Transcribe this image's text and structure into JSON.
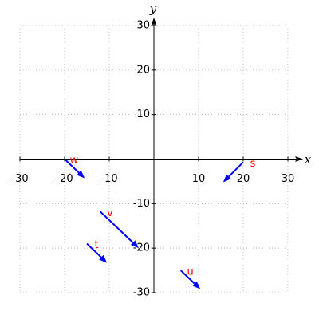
{
  "chart_data": {
    "type": "vector",
    "xlabel": "x",
    "ylabel": "y",
    "xlim": [
      -30,
      30
    ],
    "ylim": [
      -30,
      30
    ],
    "xticks": [
      -30,
      -20,
      -10,
      10,
      20,
      30
    ],
    "yticks": [
      -30,
      -20,
      -10,
      10,
      20,
      30
    ],
    "grid": true,
    "color": "#0000ff",
    "label_color": "#ff0000",
    "vectors": [
      {
        "name": "w",
        "x0": -20,
        "y0": 0,
        "x1": -15.5,
        "y1": -4.3
      },
      {
        "name": "s",
        "x0": 20,
        "y0": -0.7,
        "x1": 15.5,
        "y1": -5.2
      },
      {
        "name": "v",
        "x0": -12,
        "y0": -11.8,
        "x1": -3.4,
        "y1": -20
      },
      {
        "name": "t",
        "x0": -15,
        "y0": -19,
        "x1": -10.5,
        "y1": -23.3
      },
      {
        "name": "u",
        "x0": 6,
        "y0": -25,
        "x1": 10.4,
        "y1": -29.2
      }
    ]
  }
}
